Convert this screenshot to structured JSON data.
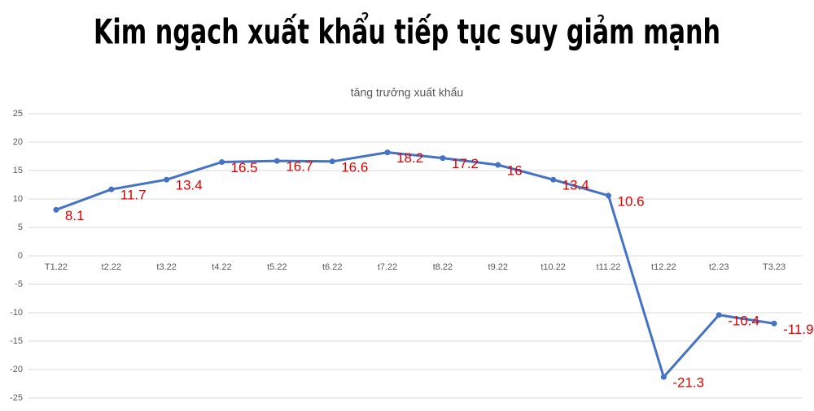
{
  "chart_data": {
    "type": "line",
    "title": "Kim ngạch xuất khẩu tiếp tục suy giảm mạnh",
    "subtitle": "tăng trưởng xuất khẩu",
    "categories": [
      "T1.22",
      "t2.22",
      "t3.22",
      "t4.22",
      "t5.22",
      "t6.22",
      "t7.22",
      "t8.22",
      "t9.22",
      "t10.22",
      "t11.22",
      "t12.22",
      "t2.23",
      "T3.23"
    ],
    "series": [
      {
        "name": "tăng trưởng xuất khẩu",
        "color": "#4472c4",
        "values": [
          8.1,
          11.7,
          13.4,
          16.5,
          16.7,
          16.6,
          18.2,
          17.2,
          16,
          13.4,
          10.6,
          -21.3,
          -10.4,
          -11.9
        ]
      }
    ],
    "label_color": "#e00000",
    "ylim": [
      -25,
      25
    ],
    "yticks": [
      -25,
      -20,
      -15,
      -10,
      -5,
      0,
      5,
      10,
      15,
      20,
      25
    ],
    "grid": true
  }
}
